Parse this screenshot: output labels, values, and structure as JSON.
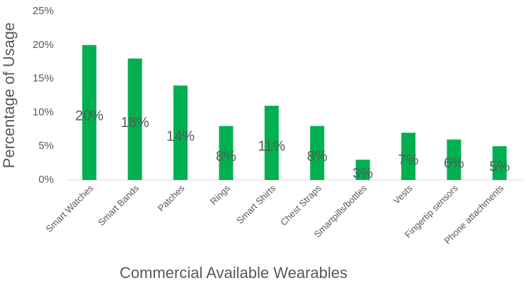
{
  "chart_data": {
    "type": "bar",
    "categories": [
      "Smart Watches",
      "Smart Bands",
      "Patches",
      "Rings",
      "Smart Shirts",
      "Chest Straps",
      "Smartpills/bottles",
      "Vests",
      "Fingertip sensors",
      "Phone attachments"
    ],
    "values": [
      20,
      18,
      14,
      8,
      11,
      8,
      3,
      7,
      6,
      5
    ],
    "value_labels": [
      "20%",
      "18%",
      "14%",
      "8%",
      "11%",
      "8%",
      "3%",
      "7%",
      "6%",
      "5%"
    ],
    "color": "#00b050",
    "x_label": "Commercial Available Wearables",
    "y_label": "Percentage of Usage",
    "ylim": [
      0,
      25
    ],
    "yticks": [
      {
        "value": 0,
        "label": "0%"
      },
      {
        "value": 5,
        "label": "5%"
      },
      {
        "value": 10,
        "label": "10%"
      },
      {
        "value": 15,
        "label": "15%"
      },
      {
        "value": 20,
        "label": "20%"
      },
      {
        "value": 25,
        "label": "25%"
      }
    ],
    "grid": false
  }
}
